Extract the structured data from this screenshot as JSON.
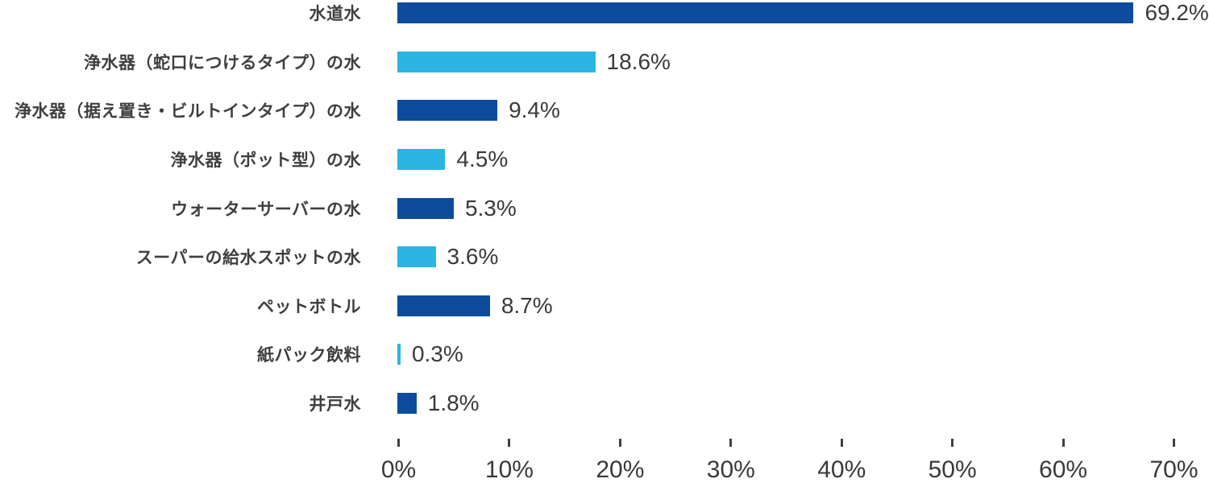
{
  "chart_data": {
    "type": "bar",
    "orientation": "horizontal",
    "title": "",
    "xlabel": "",
    "ylabel": "",
    "grid": false,
    "legend": false,
    "xlim": [
      0,
      70
    ],
    "x_tick_step": 10,
    "x_ticks": [
      "0%",
      "10%",
      "20%",
      "30%",
      "40%",
      "50%",
      "60%",
      "70%"
    ],
    "categories": [
      "水道水",
      "浄水器（蛇口につけるタイプ）の水",
      "浄水器（据え置き・ビルトインタイプ）の水",
      "浄水器（ポット型）の水",
      "ウォーターサーバーの水",
      "スーパーの給水スポットの水",
      "ペットボトル",
      "紙パック飲料",
      "井戸水"
    ],
    "values": [
      69.2,
      18.6,
      9.4,
      4.5,
      5.3,
      3.6,
      8.7,
      0.3,
      1.8
    ],
    "value_labels": [
      "69.2%",
      "18.6%",
      "9.4%",
      "4.5%",
      "5.3%",
      "3.6%",
      "8.7%",
      "0.3%",
      "1.8%"
    ],
    "palette": {
      "dark_blue": "#0D4C9C",
      "light_blue": "#2CB5E2",
      "text": "#3F3F3F",
      "tick": "#404040"
    },
    "bar_colors": [
      "#0D4C9C",
      "#2CB5E2",
      "#0D4C9C",
      "#2CB5E2",
      "#0D4C9C",
      "#2CB5E2",
      "#0D4C9C",
      "#2CB5E2",
      "#0D4C9C"
    ]
  }
}
